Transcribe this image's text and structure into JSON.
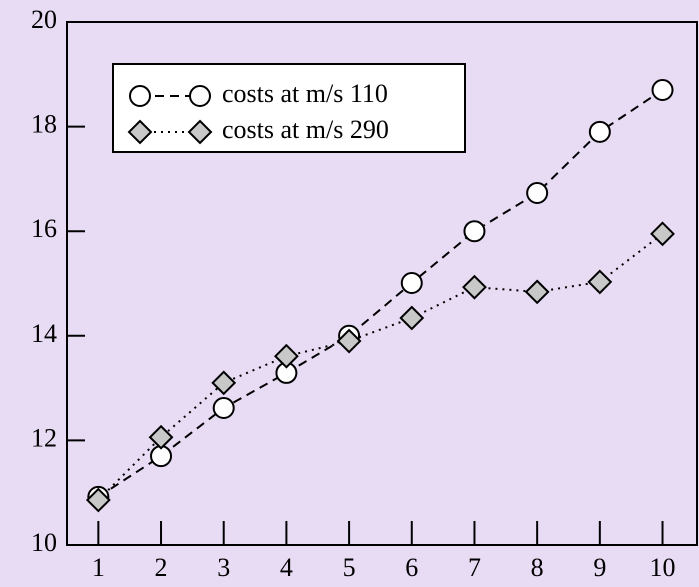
{
  "chart_data": {
    "type": "line",
    "x": [
      1,
      2,
      3,
      4,
      5,
      6,
      7,
      8,
      9,
      10
    ],
    "series": [
      {
        "name": "costs at m/s 110",
        "color": "#ffffff",
        "marker": "circle",
        "linestyle": "dashed",
        "values": [
          10.92,
          11.7,
          12.62,
          13.29,
          14.0,
          15.01,
          16.0,
          16.73,
          17.9,
          18.7
        ]
      },
      {
        "name": "costs at m/s 290",
        "color": "#c8c8c8",
        "marker": "diamond",
        "linestyle": "dotted",
        "values": [
          10.86,
          12.06,
          13.1,
          13.61,
          13.9,
          14.34,
          14.93,
          14.84,
          15.03,
          15.95
        ]
      }
    ],
    "xlim": [
      0.5,
      10.55
    ],
    "xticks": [
      1,
      2,
      3,
      4,
      5,
      6,
      7,
      8,
      9,
      10
    ],
    "ylim": [
      10,
      20
    ],
    "yticks": [
      10,
      12,
      14,
      16,
      18,
      20
    ],
    "legend": "upper left"
  }
}
